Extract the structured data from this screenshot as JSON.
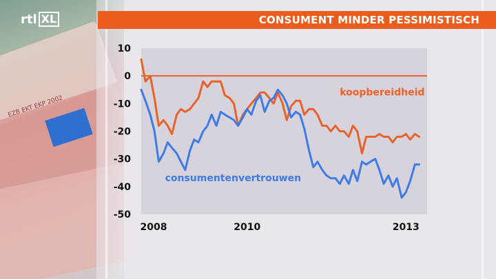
{
  "logo": {
    "prefix": "rtl",
    "suffix": "XL"
  },
  "header": {
    "title": "CONSUMENT MINDER PESSIMISTISCH"
  },
  "background": {
    "bill_text": "EZB EKT EKP 2002"
  },
  "chart_data": {
    "type": "line",
    "title": "CONSUMENT MINDER PESSIMISTISCH",
    "xlabel": "",
    "ylabel": "",
    "xlim": [
      2008,
      2013.4
    ],
    "ylim": [
      -50,
      10
    ],
    "x_ticks": [
      2008,
      2010,
      2013
    ],
    "y_ticks": [
      10,
      0,
      -10,
      -20,
      -30,
      -40,
      -50
    ],
    "reference_line": 0,
    "grid": false,
    "colors": {
      "koopbereidheid": "#e8622a",
      "consumentenvertrouwen": "#3e7be6",
      "zero_line": "#e8622a",
      "plot_bg": "#d6d3dc"
    },
    "series": [
      {
        "name": "koopbereidheid",
        "x": [
          2008.0,
          2008.08,
          2008.17,
          2008.25,
          2008.33,
          2008.42,
          2008.5,
          2008.58,
          2008.67,
          2008.75,
          2008.83,
          2008.92,
          2009.0,
          2009.08,
          2009.17,
          2009.25,
          2009.33,
          2009.42,
          2009.5,
          2009.58,
          2009.67,
          2009.75,
          2009.83,
          2009.92,
          2010.0,
          2010.08,
          2010.17,
          2010.25,
          2010.33,
          2010.42,
          2010.5,
          2010.58,
          2010.67,
          2010.75,
          2010.83,
          2010.92,
          2011.0,
          2011.08,
          2011.17,
          2011.25,
          2011.33,
          2011.42,
          2011.5,
          2011.58,
          2011.67,
          2011.75,
          2011.83,
          2011.92,
          2012.0,
          2012.08,
          2012.17,
          2012.25,
          2012.33,
          2012.42,
          2012.5,
          2012.58,
          2012.67,
          2012.75,
          2012.83,
          2012.92,
          2013.0,
          2013.08,
          2013.17,
          2013.25
        ],
        "values": [
          6,
          -2,
          0,
          -8,
          -18,
          -16,
          -18,
          -21,
          -14,
          -12,
          -13,
          -12,
          -10,
          -8,
          -2,
          -4,
          -2,
          -2,
          -2,
          -7,
          -8,
          -10,
          -18,
          -14,
          -12,
          -10,
          -8,
          -6,
          -6,
          -8,
          -10,
          -6,
          -10,
          -16,
          -11,
          -9,
          -9,
          -14,
          -12,
          -12,
          -14,
          -18,
          -18,
          -20,
          -18,
          -20,
          -20,
          -22,
          -18,
          -20,
          -28,
          -22,
          -22,
          -22,
          -21,
          -22,
          -22,
          -24,
          -22,
          -22,
          -21,
          -23,
          -21,
          -22
        ]
      },
      {
        "name": "consumentenvertrouwen",
        "x": [
          2008.0,
          2008.08,
          2008.17,
          2008.25,
          2008.33,
          2008.42,
          2008.5,
          2008.58,
          2008.67,
          2008.75,
          2008.83,
          2008.92,
          2009.0,
          2009.08,
          2009.17,
          2009.25,
          2009.33,
          2009.42,
          2009.5,
          2009.58,
          2009.67,
          2009.75,
          2009.83,
          2009.92,
          2010.0,
          2010.08,
          2010.17,
          2010.25,
          2010.33,
          2010.42,
          2010.5,
          2010.58,
          2010.67,
          2010.75,
          2010.83,
          2010.92,
          2011.0,
          2011.08,
          2011.17,
          2011.25,
          2011.33,
          2011.42,
          2011.5,
          2011.58,
          2011.67,
          2011.75,
          2011.83,
          2011.92,
          2012.0,
          2012.08,
          2012.17,
          2012.25,
          2012.33,
          2012.42,
          2012.5,
          2012.58,
          2012.67,
          2012.75,
          2012.83,
          2012.92,
          2013.0,
          2013.08,
          2013.17,
          2013.25
        ],
        "values": [
          -5,
          -9,
          -14,
          -20,
          -31,
          -28,
          -24,
          -26,
          -28,
          -31,
          -34,
          -27,
          -23,
          -24,
          -20,
          -18,
          -14,
          -18,
          -13,
          -14,
          -15,
          -16,
          -18,
          -15,
          -12,
          -14,
          -9,
          -7,
          -13,
          -9,
          -8,
          -5,
          -7,
          -10,
          -15,
          -13,
          -14,
          -19,
          -27,
          -33,
          -31,
          -34,
          -36,
          -37,
          -37,
          -39,
          -36,
          -39,
          -34,
          -38,
          -31,
          -32,
          -31,
          -30,
          -34,
          -39,
          -36,
          -40,
          -37,
          -44,
          -42,
          -38,
          -32,
          -32
        ]
      }
    ],
    "series_label_positions": {
      "koopbereidheid": [
        2011.75,
        -7
      ],
      "consumentenvertrouwen": [
        2008.45,
        -38
      ]
    }
  }
}
